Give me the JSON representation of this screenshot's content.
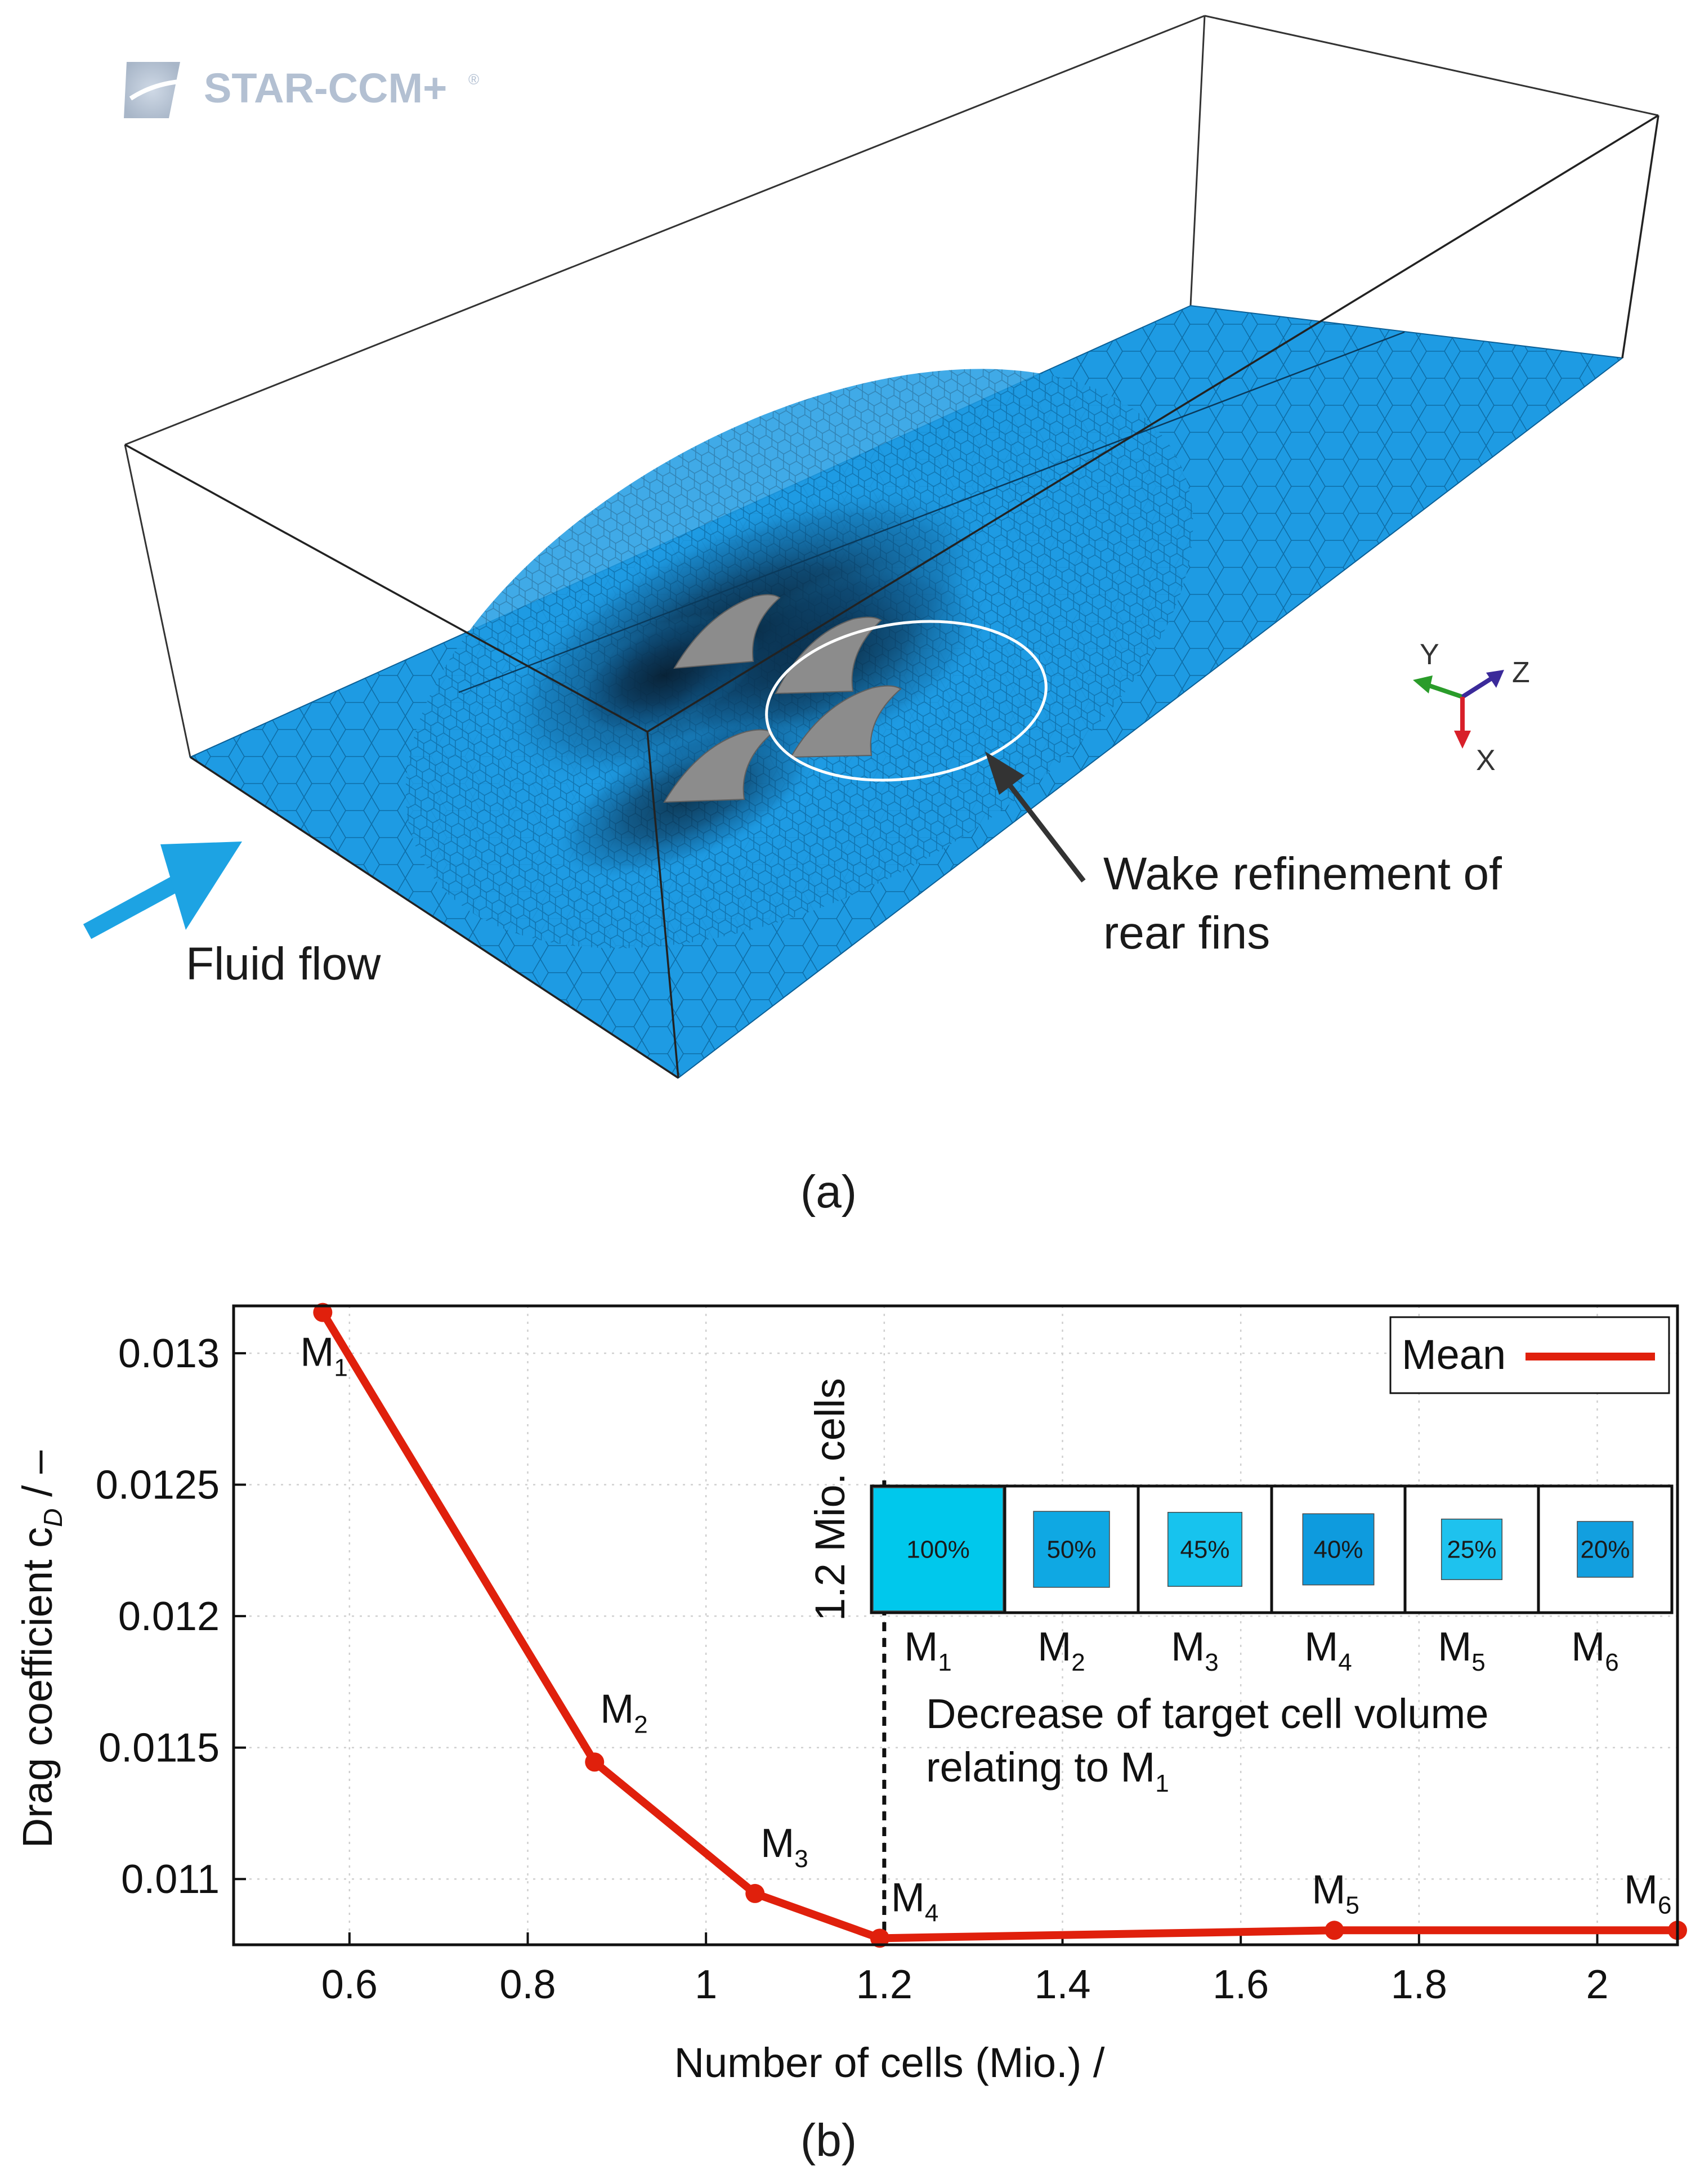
{
  "panel_a": {
    "logo_text": "STAR-CCM+",
    "logo_mark": "®",
    "flow_label": "Fluid flow",
    "wake_label": [
      "Wake refinement of",
      "rear fins"
    ],
    "axes_triad": {
      "y": "Y",
      "z": "Z",
      "x": "X"
    },
    "caption": "(a)",
    "colors": {
      "mesh": "#1e9be3",
      "mesh_dark": "#0b5f96",
      "fin": "#8c8c8c",
      "flow_arrow": "#1da3e3"
    }
  },
  "panel_b": {
    "caption": "(b)",
    "inset": {
      "vertical_label": "1.2 Mio. cells",
      "boxes": [
        {
          "pct": "100%",
          "label": "M",
          "sub": "1",
          "size": 1.0,
          "color": "#00c8ec"
        },
        {
          "pct": "50%",
          "label": "M",
          "sub": "2",
          "size": 0.79,
          "color": "#0fa8e3"
        },
        {
          "pct": "45%",
          "label": "M",
          "sub": "3",
          "size": 0.77,
          "color": "#17c3ee"
        },
        {
          "pct": "40%",
          "label": "M",
          "sub": "4",
          "size": 0.74,
          "color": "#0e9bde"
        },
        {
          "pct": "25%",
          "label": "M",
          "sub": "5",
          "size": 0.63,
          "color": "#1ec2ee"
        },
        {
          "pct": "20%",
          "label": "M",
          "sub": "6",
          "size": 0.58,
          "color": "#129fdf"
        }
      ],
      "text_line1": "Decrease of target cell volume",
      "text_line2": "relating to M",
      "text_line2_sub": "1"
    }
  },
  "chart_data": {
    "type": "line",
    "xlabel": "Number of cells (Mio.) /",
    "ylabel_main": "Drag coefficient c",
    "ylabel_sub": "D",
    "ylabel_tail": " / –",
    "xlim": [
      0.47,
      2.09
    ],
    "ylim": [
      0.01075,
      0.01318
    ],
    "xticks": [
      0.6,
      0.8,
      1,
      1.2,
      1.4,
      1.6,
      1.8,
      2
    ],
    "xtick_labels": [
      "0.6",
      "0.8",
      "1",
      "1.2",
      "1.4",
      "1.6",
      "1.8",
      "2"
    ],
    "yticks": [
      0.011,
      0.0115,
      0.012,
      0.0125,
      0.013
    ],
    "ytick_labels": [
      "0.011",
      "0.0115",
      "0.012",
      "0.0125",
      "0.013"
    ],
    "grid": true,
    "legend": "top-right",
    "reference_line_x": 1.2,
    "series": [
      {
        "name": "Mean",
        "color": "#e0200c",
        "x": [
          0.57,
          0.875,
          1.055,
          1.195,
          1.705,
          2.09
        ],
        "y": [
          0.013155,
          0.011445,
          0.010945,
          0.010775,
          0.010805,
          0.010805
        ],
        "point_labels": [
          {
            "text": "M",
            "sub": "1"
          },
          {
            "text": "M",
            "sub": "2"
          },
          {
            "text": "M",
            "sub": "3"
          },
          {
            "text": "M",
            "sub": "4"
          },
          {
            "text": "M",
            "sub": "5"
          },
          {
            "text": "M",
            "sub": "6"
          }
        ]
      }
    ]
  }
}
